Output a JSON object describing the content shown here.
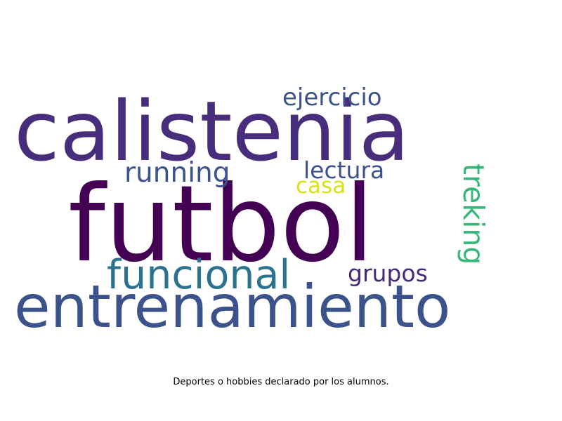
{
  "words": [
    {
      "text": "futbol",
      "color": "#440154"
    },
    {
      "text": "calistenia",
      "color": "#472d7b"
    },
    {
      "text": "entrenamiento",
      "color": "#3b528b"
    },
    {
      "text": "funcional",
      "color": "#2c728e"
    },
    {
      "text": "running",
      "color": "#3b528b"
    },
    {
      "text": "ejercicio",
      "color": "#3b528b"
    },
    {
      "text": "lectura",
      "color": "#3b528b"
    },
    {
      "text": "casa",
      "color": "#d8e219"
    },
    {
      "text": "grupos",
      "color": "#482878"
    },
    {
      "text": "treking",
      "color": "#35b779"
    }
  ],
  "caption": "Deportes o hobbies declarado por los alumnos."
}
